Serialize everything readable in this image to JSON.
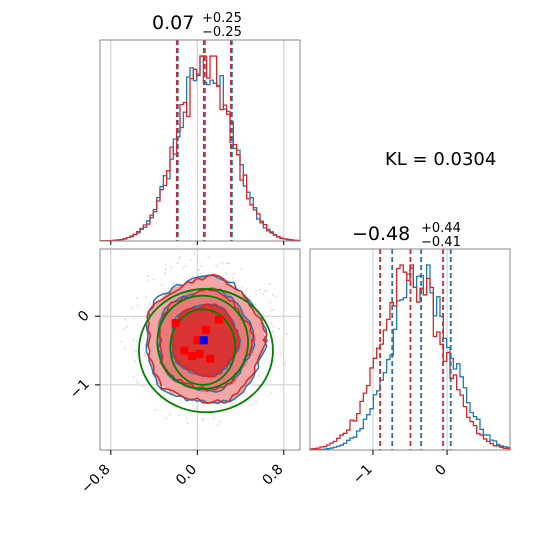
{
  "chart_data": {
    "type": "corner",
    "colors": {
      "blue": "#1f77b4",
      "red": "#d62728",
      "green": "#008000",
      "grid": "#cccccc"
    },
    "kl_label": "KL = 0.0304",
    "panels": [
      {
        "id": "param1-hist",
        "type": "histogram",
        "title": {
          "value": "0.07",
          "plus": "+0.25",
          "minus": "−0.25"
        },
        "xlim": [
          -0.9,
          0.95
        ],
        "quantiles_red": [
          -0.18,
          0.07,
          0.32
        ],
        "quantiles_blue": [
          -0.18,
          0.07,
          0.32
        ],
        "series": [
          {
            "name": "blue",
            "peak": 0.07,
            "sigma": 0.25
          },
          {
            "name": "red",
            "peak": 0.07,
            "sigma": 0.25
          }
        ]
      },
      {
        "id": "param2-hist",
        "type": "histogram",
        "title": {
          "value": "−0.48",
          "plus": "+0.44",
          "minus": "−0.41"
        },
        "xlim": [
          -1.85,
          0.85
        ],
        "xticks": [
          -1,
          0
        ],
        "xticklabels": [
          "−1",
          "0"
        ],
        "quantiles_red": [
          -0.89,
          -0.48,
          -0.04
        ],
        "quantiles_blue": [
          -0.74,
          -0.35,
          0.05
        ],
        "series": [
          {
            "name": "blue",
            "peak": -0.35,
            "sigma": 0.4
          },
          {
            "name": "red",
            "peak": -0.48,
            "sigma": 0.42
          }
        ]
      },
      {
        "id": "param1-param2-scatter",
        "type": "contour",
        "xlim": [
          -0.9,
          0.95
        ],
        "ylim": [
          -1.95,
          0.98
        ],
        "xticks": [
          -0.8,
          0.0,
          0.8
        ],
        "xticklabels": [
          "−0.8",
          "0.0",
          "0.8"
        ],
        "yticks": [
          0,
          -1
        ],
        "yticklabels": [
          "0",
          "−1"
        ],
        "center": [
          0.07,
          -0.35
        ],
        "sigma": [
          0.25,
          0.42
        ],
        "contour_levels": [
          1,
          2,
          3
        ],
        "green_ellipses": [
          {
            "center": [
              0.05,
              -0.45
            ],
            "radii": [
              0.3,
              0.55
            ]
          },
          {
            "center": [
              0.05,
              -0.38
            ],
            "radii": [
              0.42,
              0.68
            ]
          },
          {
            "center": [
              0.08,
              -0.5
            ],
            "radii": [
              0.62,
              0.9
            ]
          }
        ],
        "red_markers": [
          [
            -0.2,
            -0.1
          ],
          [
            0.08,
            -0.2
          ],
          [
            0.2,
            -0.05
          ],
          [
            -0.12,
            -0.5
          ],
          [
            0.02,
            -0.55
          ],
          [
            0.12,
            -0.62
          ],
          [
            -0.05,
            -0.58
          ],
          [
            0.0,
            -0.35
          ]
        ],
        "blue_marker": [
          0.06,
          -0.35
        ]
      }
    ]
  }
}
